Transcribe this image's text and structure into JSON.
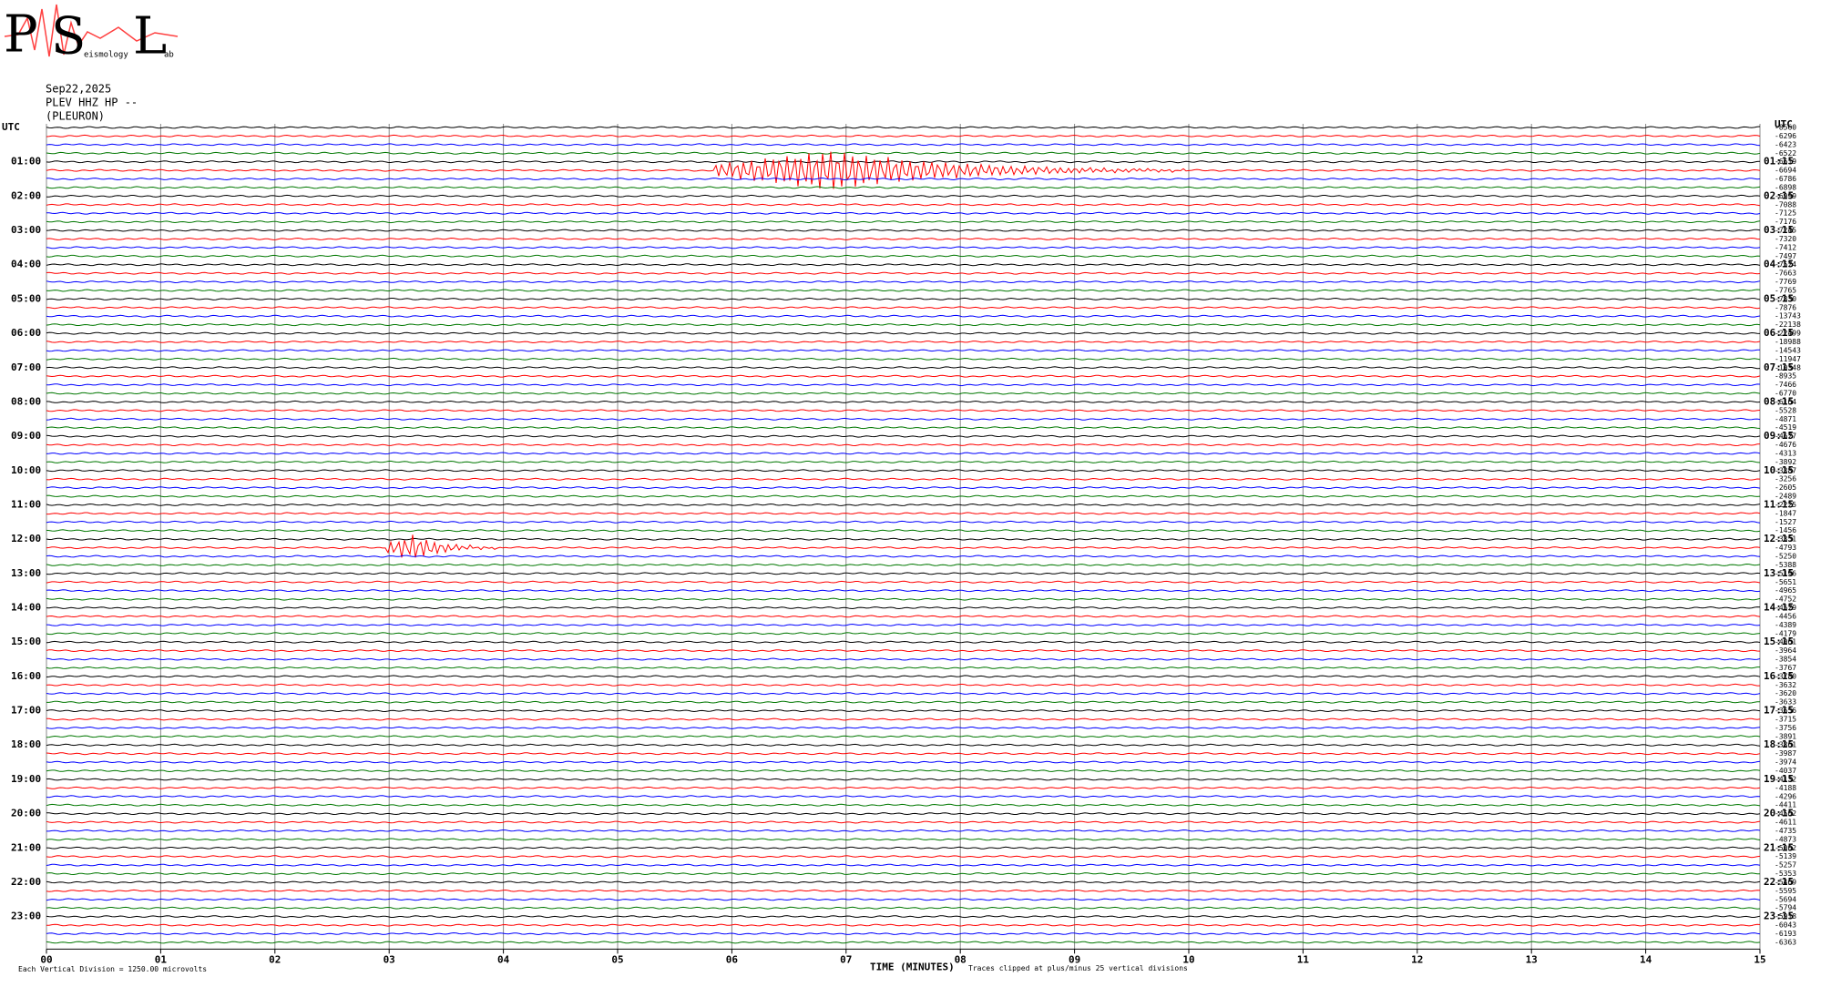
{
  "logo": {
    "letters": [
      "P",
      "S",
      "L"
    ],
    "words": [
      "eismology",
      "ab"
    ]
  },
  "header": {
    "date": "Sep22,2025",
    "station": "PLEV HHZ HP --",
    "place": "(PLEURON)"
  },
  "chart_data": {
    "type": "helicorder",
    "left_axis_label": "UTC",
    "right_axis_label": "UTC",
    "left_row_labels": [
      "01:00",
      "02:00",
      "03:00",
      "04:00",
      "05:00",
      "06:00",
      "07:00",
      "08:00",
      "09:00",
      "10:00",
      "11:00",
      "12:00",
      "13:00",
      "14:00",
      "15:00",
      "16:00",
      "17:00",
      "18:00",
      "19:00",
      "20:00",
      "21:00",
      "22:00",
      "23:00"
    ],
    "right_row_labels": [
      "01:15",
      "02:15",
      "03:15",
      "04:15",
      "05:15",
      "06:15",
      "07:15",
      "08:15",
      "09:15",
      "10:15",
      "11:15",
      "12:15",
      "13:15",
      "14:15",
      "15:15",
      "16:15",
      "17:15",
      "18:15",
      "19:15",
      "20:15",
      "21:15",
      "22:15",
      "23:15"
    ],
    "row_offsets": [
      -8560,
      -6296,
      -6423,
      -6522,
      -6619,
      -6694,
      -6786,
      -6898,
      -6999,
      -7088,
      -7125,
      -7176,
      -7245,
      -7320,
      -7412,
      -7497,
      -7574,
      -7663,
      -7769,
      -7765,
      -7830,
      -7876,
      -13743,
      -22138,
      -22499,
      -18988,
      -14543,
      -11947,
      -10348,
      -8935,
      -7466,
      -6770,
      -6164,
      -5528,
      -4871,
      -4519,
      -4677,
      -4676,
      -4313,
      -3892,
      -3387,
      -3256,
      -2605,
      -2489,
      -2225,
      -1847,
      -1527,
      -1456,
      -3351,
      -4793,
      -5250,
      -5388,
      -5196,
      -5651,
      -4965,
      -4752,
      -4579,
      -4456,
      -4389,
      -4179,
      -4061,
      -3964,
      -3854,
      -3767,
      -3780,
      -3632,
      -3620,
      -3633,
      -3656,
      -3715,
      -3756,
      -3891,
      -3861,
      -3987,
      -3974,
      -4037,
      -4132,
      -4188,
      -4296,
      -4411,
      -4502,
      -4611,
      -4735,
      -4873,
      -5002,
      -5139,
      -5257,
      -5353,
      -5469,
      -5595,
      -5694,
      -5794,
      -5918,
      -6043,
      -6193,
      -6363
    ],
    "trace_colors": [
      "#000000",
      "#ff0000",
      "#0000ff",
      "#007700"
    ],
    "xlim": [
      0,
      15
    ],
    "xticks": [
      {
        "value": 0,
        "label": "00"
      },
      {
        "value": 1,
        "label": "01"
      },
      {
        "value": 2,
        "label": "02"
      },
      {
        "value": 3,
        "label": "03"
      },
      {
        "value": 4,
        "label": "04"
      },
      {
        "value": 5,
        "label": "05"
      },
      {
        "value": 6,
        "label": "06"
      },
      {
        "value": 7,
        "label": "07"
      },
      {
        "value": 8,
        "label": "08"
      },
      {
        "value": 9,
        "label": "09"
      },
      {
        "value": 10,
        "label": "10"
      },
      {
        "value": 11,
        "label": "11"
      },
      {
        "value": 12,
        "label": "12"
      },
      {
        "value": 13,
        "label": "13"
      },
      {
        "value": 14,
        "label": "14"
      },
      {
        "value": 15,
        "label": "15"
      }
    ],
    "grid": true,
    "x_label": "TIME (MINUTES)",
    "scale_note": "Each Vertical Division = 1250.00 microvolts",
    "clip_note": "Traces clipped at plus/minus 25 vertical divisions"
  }
}
